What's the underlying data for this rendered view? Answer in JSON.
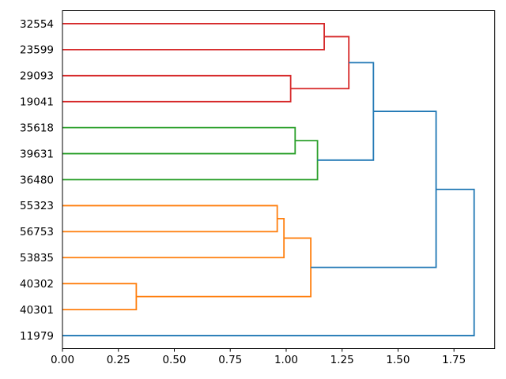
{
  "figure": {
    "background": "#ffffff",
    "plot_background": "#ffffff",
    "spine_color": "#000000",
    "tick_label_color": "#000000"
  },
  "chart_data": {
    "type": "dendrogram",
    "title": "",
    "xlabel": "",
    "ylabel": "",
    "orientation": "leaves-left-root-right",
    "grid": false,
    "legend": null,
    "leaves": [
      "32554",
      "23599",
      "29093",
      "19041",
      "35618",
      "39631",
      "36480",
      "55323",
      "56753",
      "53835",
      "40302",
      "40301",
      "11979"
    ],
    "merges": [
      {
        "id": "m1",
        "children": [
          "40302",
          "40301"
        ],
        "distance": 0.33,
        "color": "orange"
      },
      {
        "id": "m2",
        "children": [
          "55323",
          "56753"
        ],
        "distance": 0.96,
        "color": "orange"
      },
      {
        "id": "m3",
        "children": [
          "m2",
          "53835"
        ],
        "distance": 0.99,
        "color": "orange"
      },
      {
        "id": "m4",
        "children": [
          "m3",
          "m1"
        ],
        "distance": 1.11,
        "color": "orange"
      },
      {
        "id": "m5",
        "children": [
          "32554",
          "23599"
        ],
        "distance": 1.17,
        "color": "red"
      },
      {
        "id": "m6",
        "children": [
          "29093",
          "19041"
        ],
        "distance": 1.02,
        "color": "red"
      },
      {
        "id": "m7",
        "children": [
          "m5",
          "m6"
        ],
        "distance": 1.28,
        "color": "red"
      },
      {
        "id": "m8",
        "children": [
          "35618",
          "39631"
        ],
        "distance": 1.04,
        "color": "green"
      },
      {
        "id": "m9",
        "children": [
          "m8",
          "36480"
        ],
        "distance": 1.14,
        "color": "green"
      },
      {
        "id": "m10",
        "children": [
          "m7",
          "m9"
        ],
        "distance": 1.39,
        "color": "blue"
      },
      {
        "id": "m11",
        "children": [
          "m10",
          "m4"
        ],
        "distance": 1.67,
        "color": "blue"
      },
      {
        "id": "m12",
        "children": [
          "m11",
          "11979"
        ],
        "distance": 1.84,
        "color": "blue"
      }
    ],
    "colors": {
      "blue": "#1f77b4",
      "orange": "#ff7f0e",
      "green": "#2ca02c",
      "red": "#d62728"
    },
    "x_axis": {
      "range": [
        0,
        1.932
      ],
      "tick_values": [
        0.0,
        0.25,
        0.5,
        0.75,
        1.0,
        1.25,
        1.5,
        1.75
      ],
      "tick_labels": [
        "0.00",
        "0.25",
        "0.50",
        "0.75",
        "1.00",
        "1.25",
        "1.50",
        "1.75"
      ]
    }
  }
}
